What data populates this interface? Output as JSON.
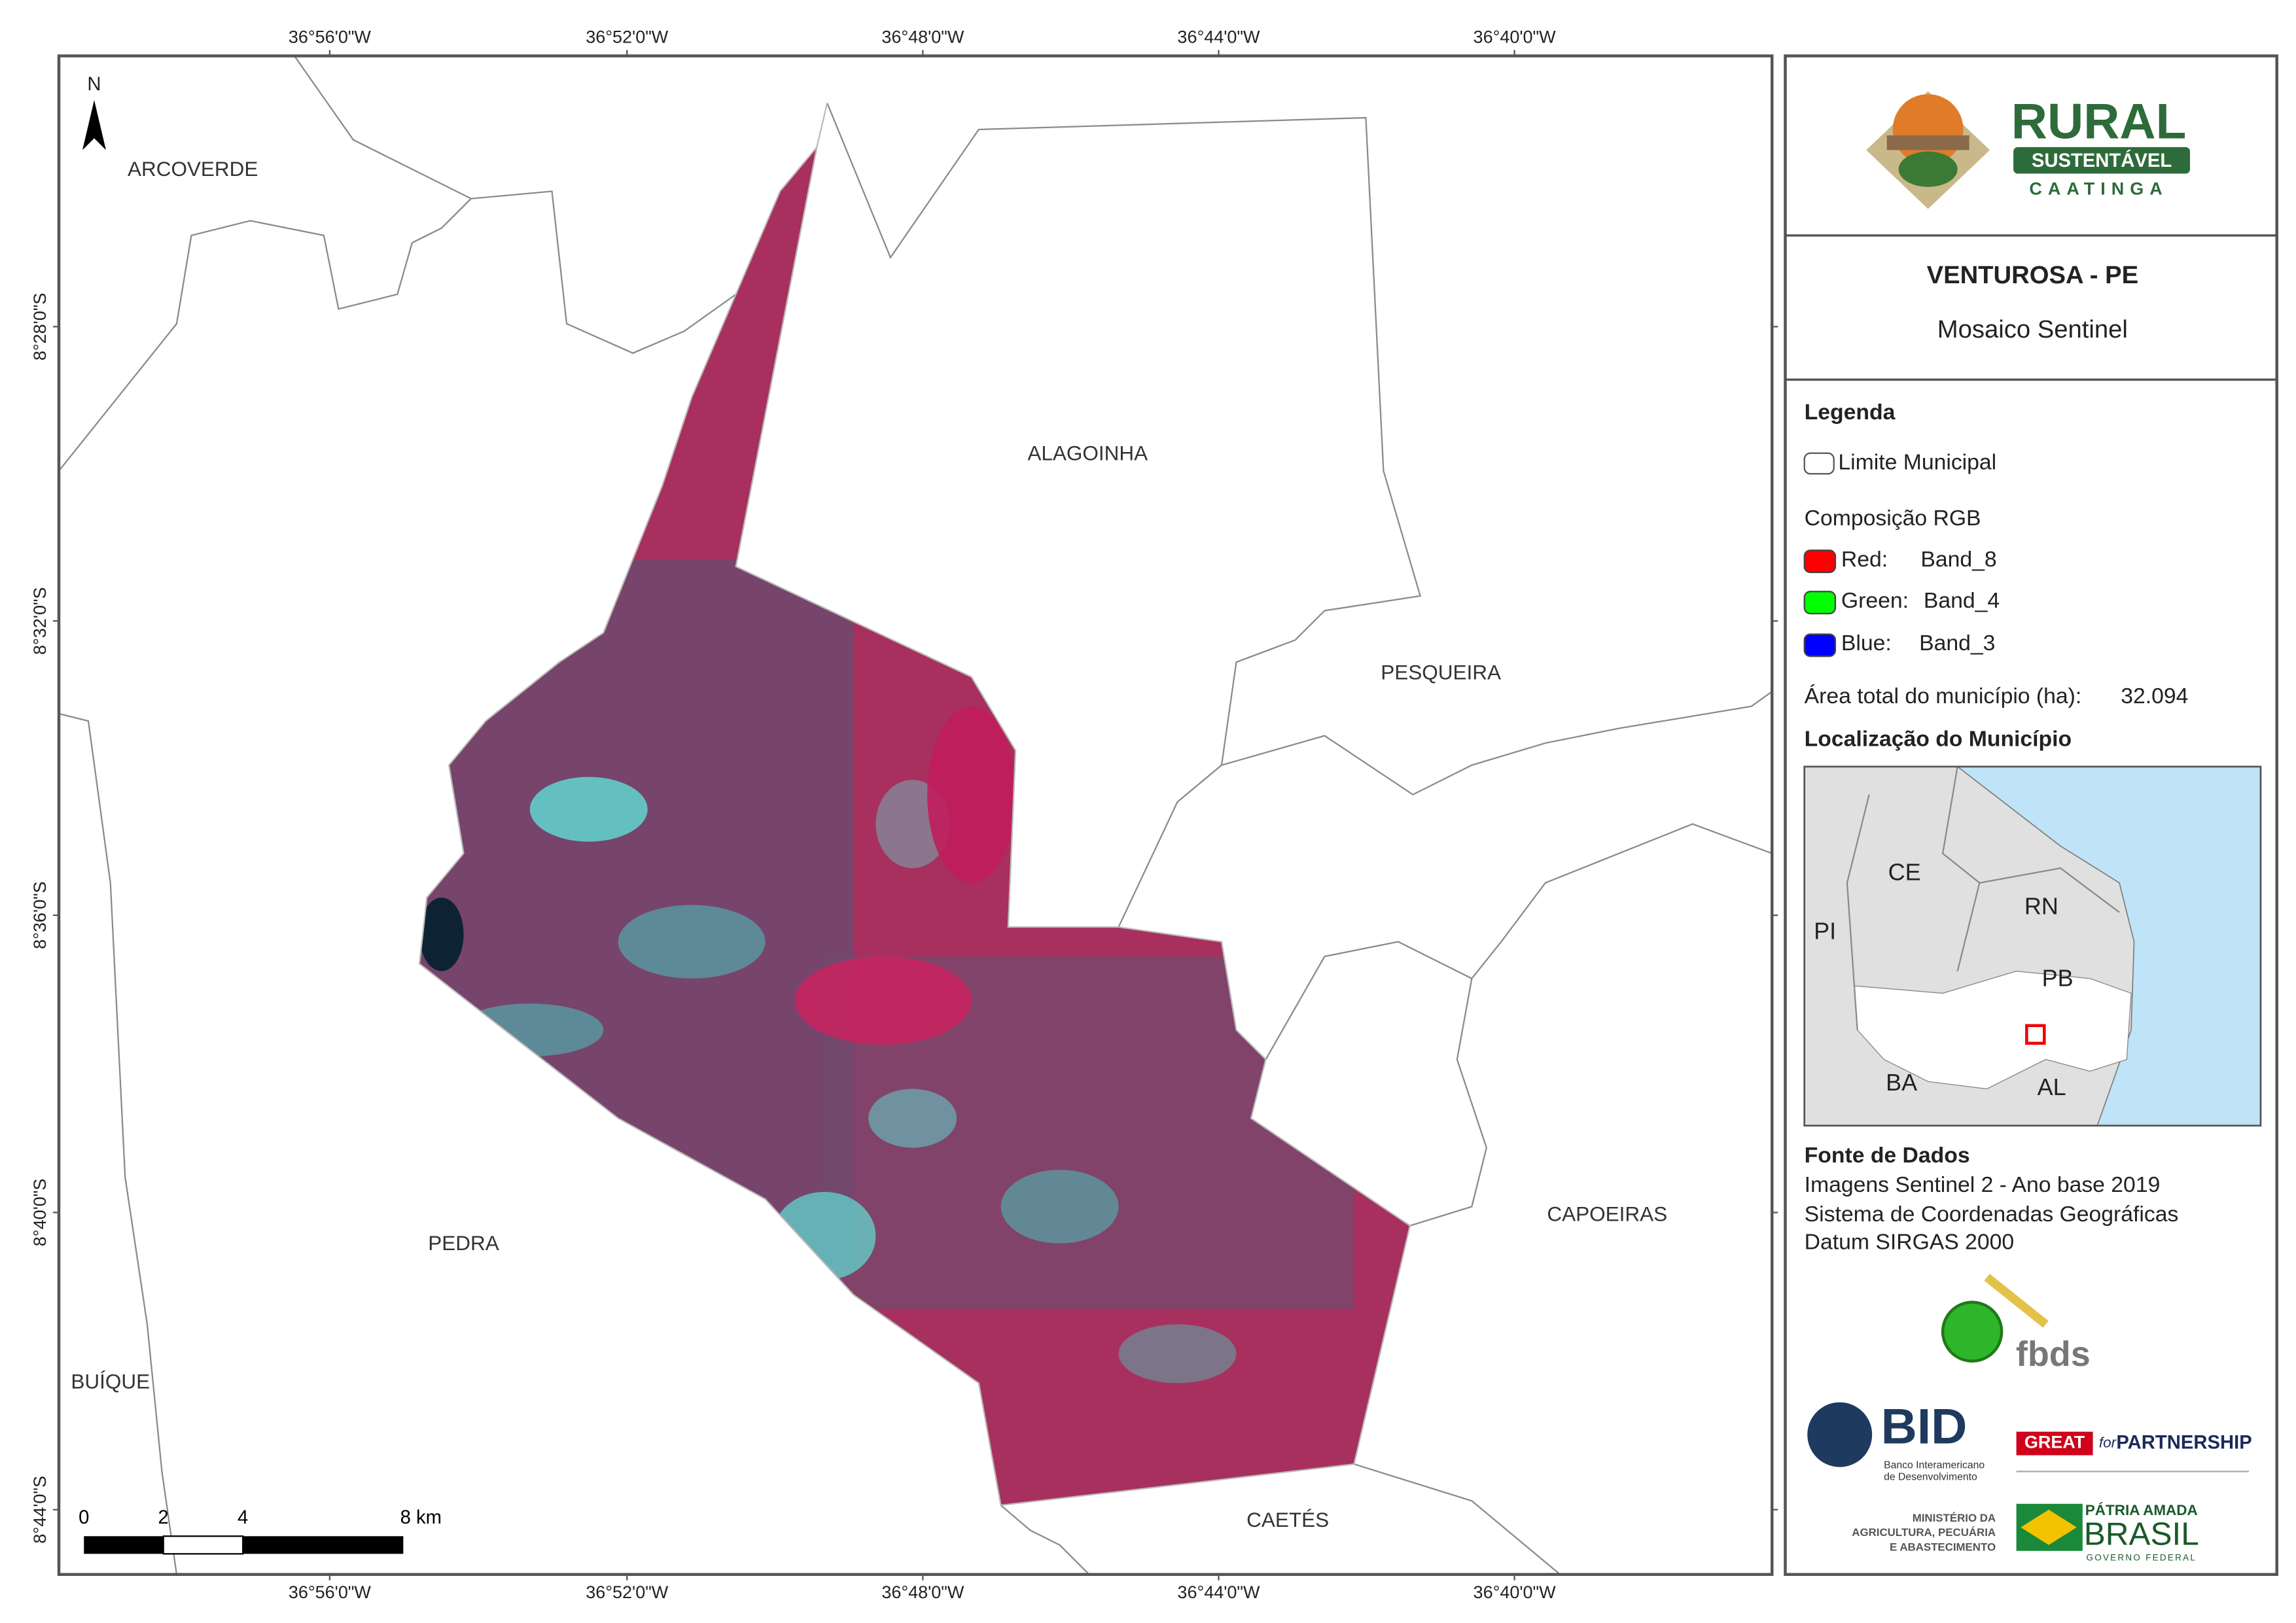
{
  "map": {
    "lon_ticks": [
      "36°56'0\"W",
      "36°52'0\"W",
      "36°48'0\"W",
      "36°44'0\"W",
      "36°40'0\"W"
    ],
    "lat_ticks": [
      "8°28'0\"S",
      "8°32'0\"S",
      "8°36'0\"S",
      "8°40'0\"S",
      "8°44'0\"S"
    ],
    "north": "N",
    "places": [
      "ARCOVERDE",
      "ALAGOINHA",
      "PESQUEIRA",
      "PEDRA",
      "CAPOEIRAS",
      "BUÍQUE",
      "CAETÉS"
    ],
    "scale_labels": [
      "0",
      "2",
      "4",
      "8 km"
    ]
  },
  "panel": {
    "logo": {
      "title": "RURAL",
      "band": "SUSTENTÁVEL",
      "sub": "CAATINGA"
    },
    "title": "VENTUROSA - PE",
    "subtitle": "Mosaico Sentinel",
    "legend": {
      "heading": "Legenda",
      "boundary": "Limite Municipal",
      "rgb_heading": "Composição RGB",
      "bands": [
        {
          "channel": "Red:",
          "band": "Band_8"
        },
        {
          "channel": "Green:",
          "band": "Band_4"
        },
        {
          "channel": "Blue:",
          "band": "Band_3"
        }
      ],
      "area_label": "Área total do município (ha):",
      "area_value": "32.094"
    },
    "inset": {
      "heading": "Localização do Município",
      "states": [
        "CE",
        "RN",
        "PI",
        "PB",
        "BA",
        "AL"
      ]
    },
    "sources": {
      "heading": "Fonte de Dados",
      "lines": [
        "Imagens Sentinel 2 - Ano base 2019",
        "Sistema de Coordenadas Geográficas",
        "Datum SIRGAS 2000"
      ]
    },
    "logos": {
      "fbds": "fbds",
      "bid": "BID",
      "bid_sub": [
        "Banco Interamericano",
        "de Desenvolvimento"
      ],
      "great": "GREAT",
      "for": "for",
      "partnership": "PARTNERSHIP",
      "ministry": [
        "MINISTÉRIO DA",
        "AGRICULTURA, PECUÁRIA",
        "E ABASTECIMENTO"
      ],
      "brasil_top": "PÁTRIA AMADA",
      "brasil": "BRASIL",
      "brasil_sub": "GOVERNO FEDERAL"
    }
  }
}
